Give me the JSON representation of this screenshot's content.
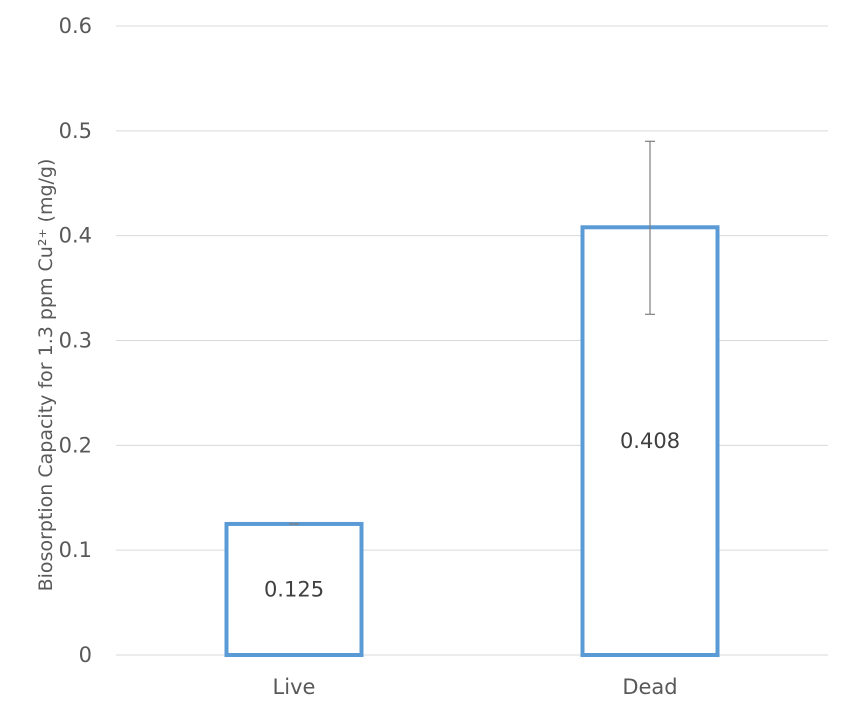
{
  "chart_data": {
    "type": "bar",
    "categories": [
      "Live",
      "Dead"
    ],
    "values": [
      0.125,
      0.408
    ],
    "error_bars": [
      {
        "low": 0.125,
        "high": 0.125
      },
      {
        "low": 0.325,
        "high": 0.49
      }
    ],
    "data_labels": [
      "0.125",
      "0.408"
    ],
    "ylabel": "Biosorption Capacity for 1.3 ppm Cu²⁺ (mg/g)",
    "xlabel": "",
    "ylim": [
      0,
      0.6
    ],
    "yticks": [
      0,
      0.1,
      0.2,
      0.3,
      0.4,
      0.5,
      0.6
    ],
    "ytick_labels": [
      "0",
      "0.1",
      "0.2",
      "0.3",
      "0.4",
      "0.5",
      "0.6"
    ],
    "grid": true,
    "legend": "none",
    "colors": {
      "bar_outline": "#5b9bd5",
      "bar_fill": "#ffffff",
      "gridline": "#d9d9d9",
      "error_bar": "#7f7f7f"
    }
  }
}
